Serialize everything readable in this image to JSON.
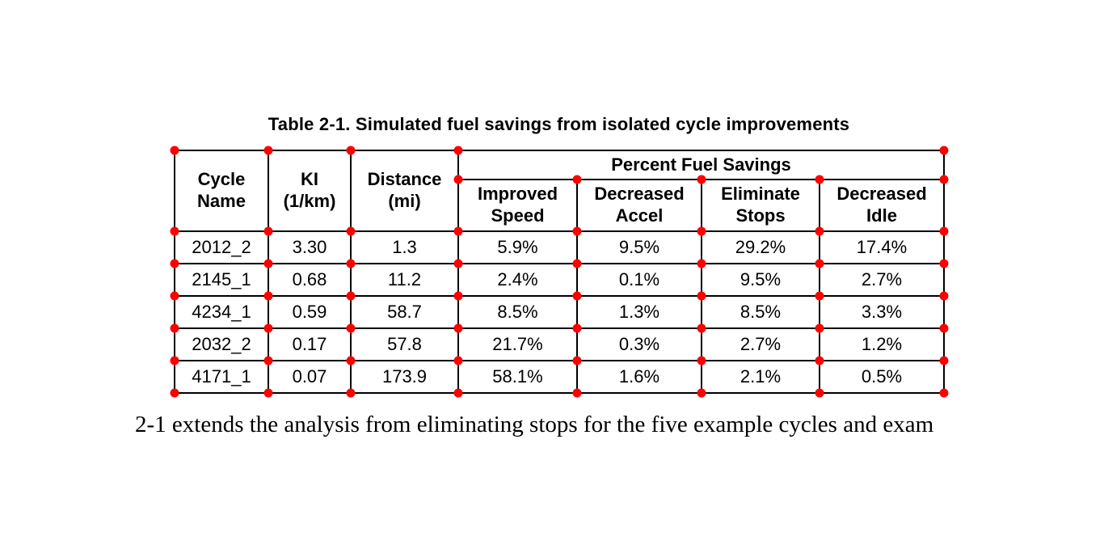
{
  "title": "Table 2-1. Simulated fuel savings from isolated cycle improvements",
  "table": {
    "headers": {
      "cycle_name": "Cycle\nName",
      "ki": "KI\n(1/km)",
      "distance": "Distance\n(mi)",
      "group": "Percent Fuel Savings",
      "sub": [
        "Improved\nSpeed",
        "Decreased\nAccel",
        "Eliminate\nStops",
        "Decreased\nIdle"
      ]
    },
    "rows": [
      [
        "2012_2",
        "3.30",
        "1.3",
        "5.9%",
        "9.5%",
        "29.2%",
        "17.4%"
      ],
      [
        "2145_1",
        "0.68",
        "11.2",
        "2.4%",
        "0.1%",
        "9.5%",
        "2.7%"
      ],
      [
        "4234_1",
        "0.59",
        "58.7",
        "8.5%",
        "1.3%",
        "8.5%",
        "3.3%"
      ],
      [
        "2032_2",
        "0.17",
        "57.8",
        "21.7%",
        "0.3%",
        "2.7%",
        "1.2%"
      ],
      [
        "4171_1",
        "0.07",
        "173.9",
        "58.1%",
        "1.6%",
        "2.1%",
        "0.5%"
      ]
    ]
  },
  "body_text": "2-1 extends the analysis from eliminating stops for the five example cycles and exam",
  "marker_color": "#ff0000"
}
